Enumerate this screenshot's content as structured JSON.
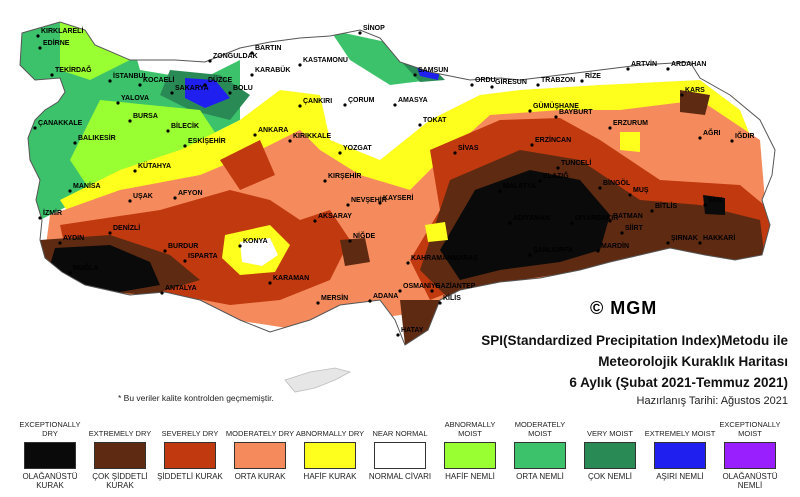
{
  "watermark": "© MGM",
  "title": {
    "line1": "SPI(Standardized Precipitation Index)Metodu ile",
    "line2": "Meteorolojik Kuraklık Haritası",
    "line3": "6 Aylık (Şubat 2021-Temmuz 2021)",
    "date": "Hazırlanış Tarihi: Ağustos 2021"
  },
  "note": "* Bu veriler kalite kontrolden geçmemiştir.",
  "legend": [
    {
      "en": "EXCEPTIONALLY DRY",
      "tr": "OLAĞANÜSTÜ KURAK",
      "color": "#0a0a0a"
    },
    {
      "en": "EXTREMELY DRY",
      "tr": "ÇOK ŞİDDETLİ KURAK",
      "color": "#5e2a12"
    },
    {
      "en": "SEVERELY DRY",
      "tr": "ŞİDDETLİ KURAK",
      "color": "#c0390f"
    },
    {
      "en": "MODERATELY DRY",
      "tr": "ORTA KURAK",
      "color": "#f58b5c"
    },
    {
      "en": "ABNORMALLY DRY",
      "tr": "HAFİF KURAK",
      "color": "#ffff1e"
    },
    {
      "en": "NEAR NORMAL",
      "tr": "NORMAL CİVARI",
      "color": "#ffffff"
    },
    {
      "en": "ABNORMALLY MOIST",
      "tr": "HAFİF NEMLİ",
      "color": "#99ff33"
    },
    {
      "en": "MODERATELY MOIST",
      "tr": "ORTA NEMLİ",
      "color": "#3cc26a"
    },
    {
      "en": "VERY MOIST",
      "tr": "ÇOK NEMLİ",
      "color": "#2a8a55"
    },
    {
      "en": "EXTREMELY MOIST",
      "tr": "AŞIRI NEMLİ",
      "color": "#1f1ff0"
    },
    {
      "en": "EXCEPTIONALLY MOIST",
      "tr": "OLAĞANÜSTÜ NEMLİ",
      "color": "#9a1fff"
    }
  ],
  "cities": [
    "KIRKLARELİ",
    "EDİRNE",
    "TEKİRDAĞ",
    "İSTANBUL",
    "KOCAELİ",
    "YALOVA",
    "SAKARYA",
    "DÜZCE",
    "BOLU",
    "BARTIN",
    "ZONGULDAK",
    "KARABÜK",
    "KASTAMONU",
    "SİNOP",
    "SAMSUN",
    "ORDU",
    "GİRESUN",
    "TRABZON",
    "RİZE",
    "ARTVİN",
    "ARDAHAN",
    "KARS",
    "IĞDIR",
    "AĞRI",
    "ERZURUM",
    "BAYBURT",
    "GÜMÜŞHANE",
    "ERZİNCAN",
    "TUNCELİ",
    "BİNGÖL",
    "MUŞ",
    "VAN",
    "BİTLİS",
    "SİİRT",
    "HAKKARİ",
    "ŞIRNAK",
    "BATMAN",
    "MARDİN",
    "DİYARBAKIR",
    "ŞANLIURFA",
    "ADIYAMAN",
    "MALATYA",
    "ELAZIĞ",
    "SİVAS",
    "TOKAT",
    "AMASYA",
    "ÇORUM",
    "ÇANKIRI",
    "KIRIKKALE",
    "ANKARA",
    "YOZGAT",
    "KIRŞEHİR",
    "NEVŞEHİR",
    "KAYSERİ",
    "AKSARAY",
    "NİĞDE",
    "KONYA",
    "KARAMAN",
    "MERSİN",
    "ADANA",
    "OSMANİYE",
    "GAZİANTEP",
    "KİLİS",
    "HATAY",
    "KAHRAMANMARAŞ",
    "ANTALYA",
    "ISPARTA",
    "BURDUR",
    "AFYON",
    "UŞAK",
    "DENİZLİ",
    "MUĞLA",
    "AYDIN",
    "İZMİR",
    "MANİSA",
    "KÜTAHYA",
    "ESKİŞEHİR",
    "BİLECİK",
    "BURSA",
    "BALIKESİR",
    "ÇANAKKALE"
  ]
}
